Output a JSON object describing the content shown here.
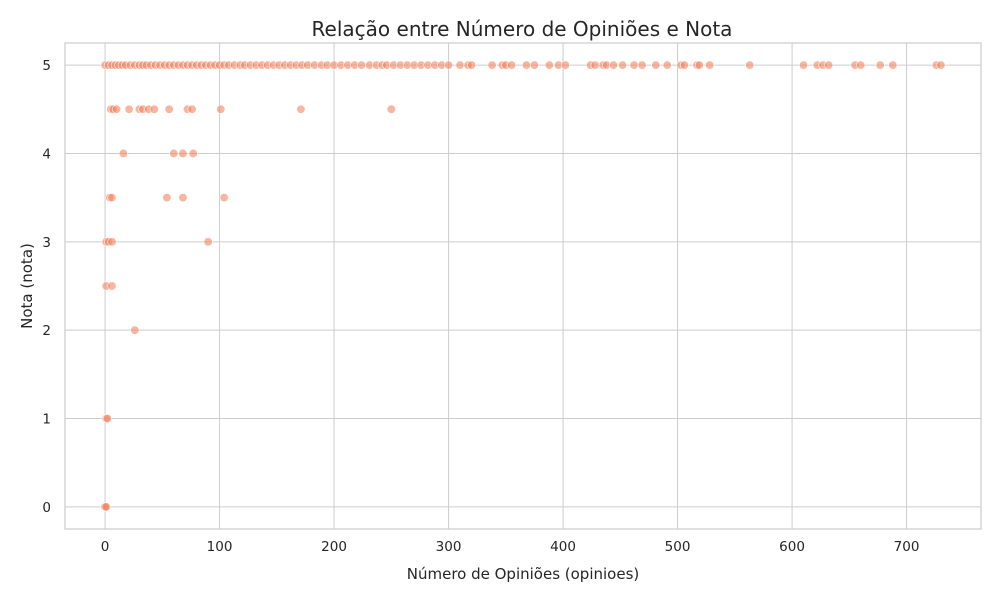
{
  "chart_data": {
    "type": "scatter",
    "title": "Relação entre Número de Opiniões e Nota",
    "xlabel": "Número de Opiniões (opinioes)",
    "ylabel": "Nota (nota)",
    "xlim": [
      -35,
      765
    ],
    "ylim": [
      -0.25,
      5.25
    ],
    "xticks": [
      0,
      100,
      200,
      300,
      400,
      500,
      600,
      700
    ],
    "yticks": [
      0,
      1,
      2,
      3,
      4,
      5
    ],
    "grid": true,
    "marker_color": "#f4845f",
    "marker_opacity": 0.6,
    "points": [
      {
        "x": 0,
        "y": 0
      },
      {
        "x": 0,
        "y": 0
      },
      {
        "x": 1,
        "y": 0
      },
      {
        "x": 1,
        "y": 1
      },
      {
        "x": 2,
        "y": 1
      },
      {
        "x": 26,
        "y": 2
      },
      {
        "x": 1,
        "y": 2.5
      },
      {
        "x": 6,
        "y": 2.5
      },
      {
        "x": 1,
        "y": 3
      },
      {
        "x": 3,
        "y": 3
      },
      {
        "x": 6,
        "y": 3
      },
      {
        "x": 90,
        "y": 3
      },
      {
        "x": 4,
        "y": 3.5
      },
      {
        "x": 6,
        "y": 3.5
      },
      {
        "x": 54,
        "y": 3.5
      },
      {
        "x": 68,
        "y": 3.5
      },
      {
        "x": 104,
        "y": 3.5
      },
      {
        "x": 16,
        "y": 4
      },
      {
        "x": 60,
        "y": 4
      },
      {
        "x": 68,
        "y": 4
      },
      {
        "x": 77,
        "y": 4
      },
      {
        "x": 5,
        "y": 4.5
      },
      {
        "x": 7,
        "y": 4.5
      },
      {
        "x": 10,
        "y": 4.5
      },
      {
        "x": 21,
        "y": 4.5
      },
      {
        "x": 30,
        "y": 4.5
      },
      {
        "x": 33,
        "y": 4.5
      },
      {
        "x": 38,
        "y": 4.5
      },
      {
        "x": 43,
        "y": 4.5
      },
      {
        "x": 56,
        "y": 4.5
      },
      {
        "x": 72,
        "y": 4.5
      },
      {
        "x": 76,
        "y": 4.5
      },
      {
        "x": 101,
        "y": 4.5
      },
      {
        "x": 171,
        "y": 4.5
      },
      {
        "x": 250,
        "y": 4.5
      },
      {
        "x": 0,
        "y": 5
      },
      {
        "x": 3,
        "y": 5
      },
      {
        "x": 6,
        "y": 5
      },
      {
        "x": 9,
        "y": 5
      },
      {
        "x": 12,
        "y": 5
      },
      {
        "x": 15,
        "y": 5
      },
      {
        "x": 18,
        "y": 5
      },
      {
        "x": 22,
        "y": 5
      },
      {
        "x": 26,
        "y": 5
      },
      {
        "x": 30,
        "y": 5
      },
      {
        "x": 33,
        "y": 5
      },
      {
        "x": 36,
        "y": 5
      },
      {
        "x": 40,
        "y": 5
      },
      {
        "x": 44,
        "y": 5
      },
      {
        "x": 48,
        "y": 5
      },
      {
        "x": 52,
        "y": 5
      },
      {
        "x": 56,
        "y": 5
      },
      {
        "x": 60,
        "y": 5
      },
      {
        "x": 64,
        "y": 5
      },
      {
        "x": 68,
        "y": 5
      },
      {
        "x": 72,
        "y": 5
      },
      {
        "x": 76,
        "y": 5
      },
      {
        "x": 80,
        "y": 5
      },
      {
        "x": 84,
        "y": 5
      },
      {
        "x": 88,
        "y": 5
      },
      {
        "x": 92,
        "y": 5
      },
      {
        "x": 96,
        "y": 5
      },
      {
        "x": 100,
        "y": 5
      },
      {
        "x": 104,
        "y": 5
      },
      {
        "x": 108,
        "y": 5
      },
      {
        "x": 113,
        "y": 5
      },
      {
        "x": 118,
        "y": 5
      },
      {
        "x": 122,
        "y": 5
      },
      {
        "x": 127,
        "y": 5
      },
      {
        "x": 132,
        "y": 5
      },
      {
        "x": 137,
        "y": 5
      },
      {
        "x": 142,
        "y": 5
      },
      {
        "x": 147,
        "y": 5
      },
      {
        "x": 152,
        "y": 5
      },
      {
        "x": 157,
        "y": 5
      },
      {
        "x": 162,
        "y": 5
      },
      {
        "x": 167,
        "y": 5
      },
      {
        "x": 172,
        "y": 5
      },
      {
        "x": 177,
        "y": 5
      },
      {
        "x": 183,
        "y": 5
      },
      {
        "x": 189,
        "y": 5
      },
      {
        "x": 194,
        "y": 5
      },
      {
        "x": 200,
        "y": 5
      },
      {
        "x": 206,
        "y": 5
      },
      {
        "x": 212,
        "y": 5
      },
      {
        "x": 218,
        "y": 5
      },
      {
        "x": 224,
        "y": 5
      },
      {
        "x": 231,
        "y": 5
      },
      {
        "x": 237,
        "y": 5
      },
      {
        "x": 242,
        "y": 5
      },
      {
        "x": 246,
        "y": 5
      },
      {
        "x": 252,
        "y": 5
      },
      {
        "x": 258,
        "y": 5
      },
      {
        "x": 264,
        "y": 5
      },
      {
        "x": 270,
        "y": 5
      },
      {
        "x": 276,
        "y": 5
      },
      {
        "x": 282,
        "y": 5
      },
      {
        "x": 288,
        "y": 5
      },
      {
        "x": 294,
        "y": 5
      },
      {
        "x": 300,
        "y": 5
      },
      {
        "x": 310,
        "y": 5
      },
      {
        "x": 317,
        "y": 5
      },
      {
        "x": 320,
        "y": 5
      },
      {
        "x": 338,
        "y": 5
      },
      {
        "x": 347,
        "y": 5
      },
      {
        "x": 350,
        "y": 5
      },
      {
        "x": 355,
        "y": 5
      },
      {
        "x": 368,
        "y": 5
      },
      {
        "x": 375,
        "y": 5
      },
      {
        "x": 388,
        "y": 5
      },
      {
        "x": 396,
        "y": 5
      },
      {
        "x": 402,
        "y": 5
      },
      {
        "x": 424,
        "y": 5
      },
      {
        "x": 428,
        "y": 5
      },
      {
        "x": 435,
        "y": 5
      },
      {
        "x": 438,
        "y": 5
      },
      {
        "x": 444,
        "y": 5
      },
      {
        "x": 452,
        "y": 5
      },
      {
        "x": 462,
        "y": 5
      },
      {
        "x": 469,
        "y": 5
      },
      {
        "x": 481,
        "y": 5
      },
      {
        "x": 491,
        "y": 5
      },
      {
        "x": 503,
        "y": 5
      },
      {
        "x": 506,
        "y": 5
      },
      {
        "x": 517,
        "y": 5
      },
      {
        "x": 519,
        "y": 5
      },
      {
        "x": 528,
        "y": 5
      },
      {
        "x": 563,
        "y": 5
      },
      {
        "x": 610,
        "y": 5
      },
      {
        "x": 622,
        "y": 5
      },
      {
        "x": 627,
        "y": 5
      },
      {
        "x": 632,
        "y": 5
      },
      {
        "x": 655,
        "y": 5
      },
      {
        "x": 660,
        "y": 5
      },
      {
        "x": 677,
        "y": 5
      },
      {
        "x": 688,
        "y": 5
      },
      {
        "x": 726,
        "y": 5
      },
      {
        "x": 730,
        "y": 5
      }
    ]
  }
}
